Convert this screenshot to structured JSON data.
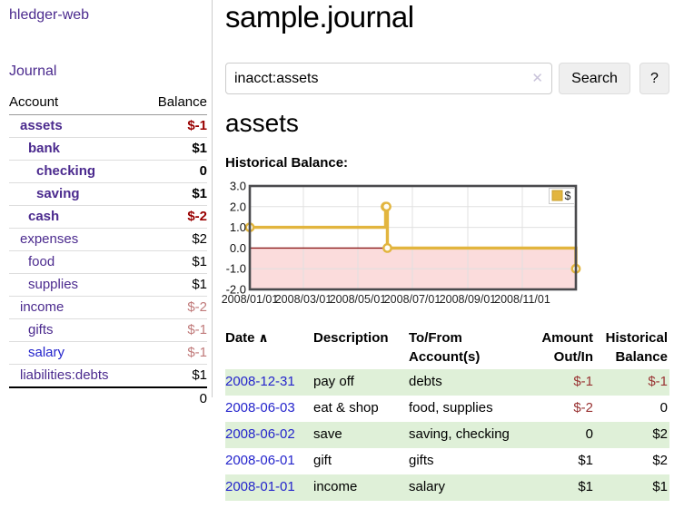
{
  "sidebar": {
    "brand": "hledger-web",
    "nav_journal": "Journal",
    "accounts_header": {
      "account": "Account",
      "balance": "Balance"
    },
    "accounts": [
      {
        "name": "assets",
        "depth": 0,
        "balance": "$-1",
        "bold": true,
        "negative": true
      },
      {
        "name": "bank",
        "depth": 1,
        "balance": "$1",
        "bold": true,
        "negative": false
      },
      {
        "name": "checking",
        "depth": 2,
        "balance": "0",
        "bold": true,
        "negative": false
      },
      {
        "name": "saving",
        "depth": 2,
        "balance": "$1",
        "bold": true,
        "negative": false
      },
      {
        "name": "cash",
        "depth": 1,
        "balance": "$-2",
        "bold": true,
        "negative": true
      },
      {
        "name": "expenses",
        "depth": 0,
        "balance": "$2",
        "bold": false,
        "negative": false
      },
      {
        "name": "food",
        "depth": 1,
        "balance": "$1",
        "bold": false,
        "negative": false
      },
      {
        "name": "supplies",
        "depth": 1,
        "balance": "$1",
        "bold": false,
        "negative": false
      },
      {
        "name": "income",
        "depth": 0,
        "balance": "$-2",
        "bold": false,
        "negative": true
      },
      {
        "name": "gifts",
        "depth": 1,
        "balance": "$-1",
        "bold": false,
        "negative": true
      },
      {
        "name": "salary",
        "depth": 1,
        "balance": "$-1",
        "bold": false,
        "negative": true,
        "link_color": "blue"
      },
      {
        "name": "liabilities:debts",
        "depth": 0,
        "balance": "$1",
        "bold": false,
        "negative": false,
        "last": true
      }
    ],
    "total": "0"
  },
  "header": {
    "title": "sample.journal"
  },
  "search": {
    "query": "inacct:assets",
    "clear_label": "✕",
    "button": "Search",
    "help_button": "?"
  },
  "account_page": {
    "heading": "assets",
    "chart_label": "Historical Balance:"
  },
  "chart_data": {
    "type": "line",
    "title": "Historical Balance:",
    "step": true,
    "xlim_days": [
      0,
      365
    ],
    "ylim": [
      -2,
      3
    ],
    "y_ticks": [
      "3.0",
      "2.0",
      "1.0",
      "0.0",
      "-1.0",
      "-2.0"
    ],
    "y_tick_values": [
      3,
      2,
      1,
      0,
      -1,
      -2
    ],
    "x_ticks": [
      {
        "label": "2008/01/01",
        "day": 0
      },
      {
        "label": "2008/03/01",
        "day": 60
      },
      {
        "label": "2008/05/01",
        "day": 121
      },
      {
        "label": "2008/07/01",
        "day": 182
      },
      {
        "label": "2008/09/01",
        "day": 244
      },
      {
        "label": "2008/11/01",
        "day": 305
      }
    ],
    "series": [
      {
        "name": "$",
        "color": "#e2b53e",
        "points": [
          {
            "date": "2008/01/01",
            "day": 0,
            "value": 1
          },
          {
            "date": "2008/06/01",
            "day": 152,
            "value": 2
          },
          {
            "date": "2008/06/02",
            "day": 153,
            "value": 2
          },
          {
            "date": "2008/06/03",
            "day": 154,
            "value": 0
          },
          {
            "date": "2008/12/31",
            "day": 365,
            "value": -1
          }
        ]
      }
    ],
    "legend": {
      "position": "top-right",
      "label": "$",
      "swatch_color": "#e2b53e"
    },
    "grid": true,
    "grid_color": "#e0e0e0",
    "border_color": "#4a4a4d",
    "zero_line_color": "#8b1a1a",
    "negative_fill": "#fbdcdc"
  },
  "register": {
    "columns": [
      {
        "label": "Date",
        "sort_arrow": "∧",
        "align": "left"
      },
      {
        "label": "Description",
        "align": "left"
      },
      {
        "label": "To/From Account(s)",
        "align": "left"
      },
      {
        "label": "Amount Out/In",
        "align": "right"
      },
      {
        "label": "Historical Balance",
        "align": "right"
      }
    ],
    "rows": [
      {
        "date": "2008-12-31",
        "description": "pay off",
        "accounts": "debts",
        "amount": "$-1",
        "amount_neg": true,
        "balance": "$-1",
        "balance_neg": true
      },
      {
        "date": "2008-06-03",
        "description": "eat & shop",
        "accounts": "food, supplies",
        "amount": "$-2",
        "amount_neg": true,
        "balance": "0",
        "balance_neg": false
      },
      {
        "date": "2008-06-02",
        "description": "save",
        "accounts": "saving, checking",
        "amount": "0",
        "amount_neg": false,
        "balance": "$2",
        "balance_neg": false
      },
      {
        "date": "2008-06-01",
        "description": "gift",
        "accounts": "gifts",
        "amount": "$1",
        "amount_neg": false,
        "balance": "$2",
        "balance_neg": false
      },
      {
        "date": "2008-01-01",
        "description": "income",
        "accounts": "salary",
        "amount": "$1",
        "amount_neg": false,
        "balance": "$1",
        "balance_neg": false
      }
    ]
  },
  "colors": {
    "link_purple": "#4b2a8e",
    "link_blue": "#2424cc",
    "negative_strong": "#990000",
    "negative_soft": "#c07a7a",
    "table_negative": "#993333",
    "row_stripe_green": "#dff0d8",
    "chart_line_yellow": "#e2b53e"
  }
}
